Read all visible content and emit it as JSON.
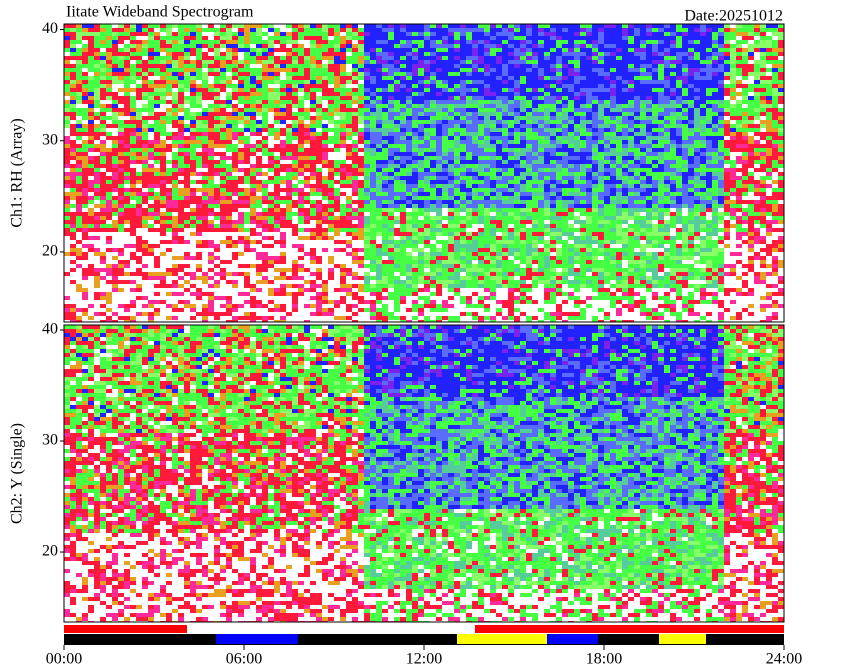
{
  "chart_data": [
    {
      "type": "spectrogram",
      "title": "Iitate Wideband Spectrogram",
      "date": "Date:20251012",
      "ylabel": "Ch1: RH (Array)",
      "ylim": [
        13.7,
        40.5
      ],
      "yticks": [
        20,
        30,
        40
      ]
    },
    {
      "type": "spectrogram",
      "ylabel": "Ch2: Y (Single)",
      "ylim": [
        13.7,
        40.45
      ],
      "yticks": [
        20,
        30,
        40
      ],
      "xlim": [
        0,
        24
      ],
      "xticks": [
        {
          "value": 0,
          "label": "00:00"
        },
        {
          "value": 6,
          "label": "06:00"
        },
        {
          "value": 12,
          "label": "12:00"
        },
        {
          "value": 18,
          "label": "18:00"
        },
        {
          "value": 24,
          "label": "24:00"
        }
      ]
    }
  ]
}
